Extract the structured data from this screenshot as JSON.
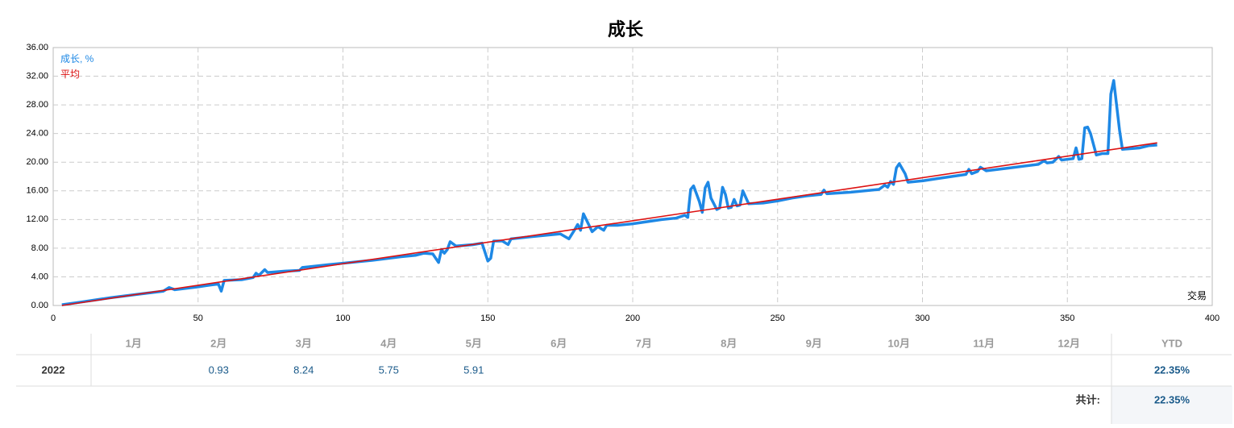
{
  "chart_data": {
    "type": "line",
    "title": "成长",
    "x_label": "交易",
    "xlim": [
      0,
      400
    ],
    "xticks": [
      0,
      50,
      100,
      150,
      200,
      250,
      300,
      350,
      400
    ],
    "ylim": [
      0,
      36
    ],
    "yticks": [
      {
        "value": 0,
        "label": "0.00"
      },
      {
        "value": 4,
        "label": "4.00"
      },
      {
        "value": 8,
        "label": "8.00"
      },
      {
        "value": 12,
        "label": "12.00"
      },
      {
        "value": 16,
        "label": "16.00"
      },
      {
        "value": 20,
        "label": "20.00"
      },
      {
        "value": 24,
        "label": "24.00"
      },
      {
        "value": 28,
        "label": "28.00"
      },
      {
        "value": 32,
        "label": "32.00"
      },
      {
        "value": 36,
        "label": "36.00"
      }
    ],
    "grid": true,
    "legend": "top-left",
    "series": [
      {
        "name": "成长, %",
        "color": "#1e88e5",
        "x": [
          3,
          10,
          20,
          30,
          38,
          40,
          42,
          50,
          55,
          57,
          58,
          59,
          65,
          69,
          70,
          71,
          73,
          74,
          80,
          85,
          86,
          95,
          100,
          110,
          120,
          125,
          128,
          131,
          133,
          134,
          135,
          136,
          137,
          139,
          145,
          148,
          150,
          151,
          152,
          155,
          157,
          158,
          165,
          170,
          175,
          178,
          180,
          181,
          182,
          183,
          186,
          188,
          190,
          191,
          195,
          200,
          205,
          210,
          215,
          218,
          219,
          220,
          221,
          223,
          224,
          225,
          226,
          227,
          229,
          230,
          231,
          232,
          233,
          234,
          235,
          236,
          237,
          238,
          240,
          245,
          250,
          255,
          260,
          265,
          266,
          267,
          275,
          285,
          287,
          288,
          289,
          290,
          291,
          292,
          294,
          295,
          300,
          305,
          310,
          315,
          316,
          317,
          319,
          320,
          322,
          330,
          340,
          342,
          343,
          345,
          347,
          348,
          352,
          353,
          354,
          355,
          356,
          357,
          358,
          360,
          362,
          364,
          365,
          366,
          368,
          369,
          372,
          375,
          378,
          381
        ],
        "values": [
          0.1,
          0.5,
          1.1,
          1.6,
          2.0,
          2.5,
          2.2,
          2.6,
          2.9,
          3.0,
          2.0,
          3.5,
          3.6,
          3.9,
          4.5,
          4.2,
          5.0,
          4.6,
          4.8,
          4.9,
          5.3,
          5.7,
          5.9,
          6.3,
          6.8,
          7.0,
          7.3,
          7.2,
          6.0,
          7.8,
          7.3,
          7.8,
          8.9,
          8.3,
          8.5,
          8.7,
          6.2,
          6.6,
          9.0,
          9.0,
          8.5,
          9.3,
          9.6,
          9.8,
          10.0,
          9.3,
          10.6,
          11.3,
          10.5,
          12.8,
          10.3,
          11.0,
          10.5,
          11.2,
          11.2,
          11.4,
          11.7,
          12.0,
          12.2,
          12.6,
          12.3,
          16.2,
          16.7,
          14.5,
          13.0,
          16.4,
          17.2,
          15.0,
          13.4,
          13.6,
          16.5,
          15.5,
          13.6,
          13.7,
          14.8,
          13.9,
          14.0,
          16.0,
          14.2,
          14.3,
          14.6,
          15.0,
          15.3,
          15.5,
          16.1,
          15.6,
          15.8,
          16.2,
          16.8,
          16.5,
          17.3,
          16.9,
          19.2,
          19.8,
          18.4,
          17.2,
          17.4,
          17.7,
          18.0,
          18.3,
          19.0,
          18.4,
          18.7,
          19.3,
          18.8,
          19.2,
          19.7,
          20.2,
          19.9,
          20.0,
          20.8,
          20.3,
          20.5,
          22.0,
          20.4,
          20.5,
          24.8,
          24.9,
          24.0,
          21.0,
          21.2,
          21.2,
          29.5,
          31.4,
          24.5,
          21.8,
          21.9,
          22.0,
          22.3,
          22.4
        ]
      },
      {
        "name": "平均",
        "color": "#dd1111",
        "x": [
          3,
          381
        ],
        "values": [
          0,
          22.7
        ]
      }
    ]
  },
  "table": {
    "header": [
      "1月",
      "2月",
      "3月",
      "4月",
      "5月",
      "6月",
      "7月",
      "8月",
      "9月",
      "10月",
      "11月",
      "12月",
      "YTD"
    ],
    "rows": [
      {
        "year": "2022",
        "cells": [
          null,
          "0.93",
          "8.24",
          "5.75",
          "5.91",
          null,
          null,
          null,
          null,
          null,
          null,
          null,
          "22.35%"
        ]
      }
    ],
    "total_label": "共计:",
    "total_value": "22.35%"
  }
}
